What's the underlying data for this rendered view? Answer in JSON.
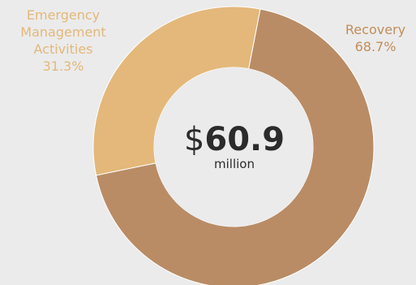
{
  "chart_data": {
    "type": "pie",
    "variant": "donut",
    "title": "",
    "center_currency": "$",
    "center_value": "60.9",
    "center_unit": "million",
    "slices": [
      {
        "label_lines": [
          "Emergency",
          "Management",
          "Activities"
        ],
        "percent_label": "31.3%",
        "value": 31.3,
        "color": "#e3b87a"
      },
      {
        "label_lines": [
          "Recovery"
        ],
        "percent_label": "68.7%",
        "value": 68.7,
        "color": "#b98c65"
      }
    ]
  },
  "colors": {
    "background": "#ebebeb",
    "hole": "#ebebeb",
    "emergency_label": "#e3b87a",
    "recovery_label": "#c08e5b",
    "center_text": "#2b2b2b"
  }
}
